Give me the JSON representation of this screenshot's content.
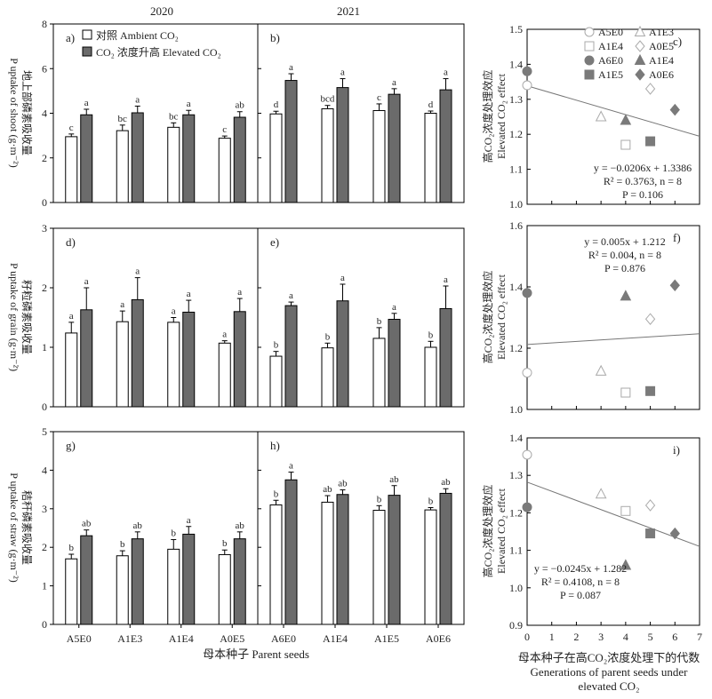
{
  "figure": {
    "year_labels": [
      "2020",
      "2021"
    ],
    "x_axis_title": "母本种子 Parent seeds",
    "legend": {
      "ambient": "对照 Ambient CO₂",
      "elevated": "CO₂ 浓度升高 Elevated CO₂"
    },
    "right_xlabel": [
      "母本种子在高CO₂浓度处理下的代数",
      "Generations of parent seeds under",
      "elevated CO₂"
    ],
    "right_ylabel": [
      "高CO₂浓度处理效应",
      "Elevated CO₂ effect"
    ],
    "row_ylabels": [
      [
        "地上部磷素吸收量",
        "P uptake of shoot (g·m⁻²)"
      ],
      [
        "籽粒磷素吸收量",
        "P uptake of grain (g·m⁻²)"
      ],
      [
        "秸秆磷素吸收量",
        "P uptake of straw (g·m⁻²)"
      ]
    ],
    "point_legend": [
      {
        "label": "A5E0",
        "marker": "circle",
        "fill": "open"
      },
      {
        "label": "A1E3",
        "marker": "triangle",
        "fill": "open"
      },
      {
        "label": "A1E4",
        "marker": "square",
        "fill": "open"
      },
      {
        "label": "A0E5",
        "marker": "diamond",
        "fill": "open"
      },
      {
        "label": "A6E0",
        "marker": "circle",
        "fill": "filled"
      },
      {
        "label": "A1E4",
        "marker": "triangle",
        "fill": "filled"
      },
      {
        "label": "A1E5",
        "marker": "square",
        "fill": "filled"
      },
      {
        "label": "A0E6",
        "marker": "diamond",
        "fill": "filled"
      }
    ],
    "colors": {
      "elevated_bar": "#6b6b6b",
      "ambient_bar": "#ffffff",
      "filled_marker": "#7a7a7a",
      "open_marker": "#aaaaaa"
    }
  },
  "chart_data": [
    {
      "panel": "a)",
      "type": "bar",
      "year": "2020",
      "categories": [
        "A5E0",
        "A1E3",
        "A1E4",
        "A0E5"
      ],
      "ylim": [
        0,
        8
      ],
      "yticks": [
        0,
        2,
        4,
        6,
        8
      ],
      "series": [
        {
          "name": "Ambient CO₂",
          "values": [
            2.95,
            3.22,
            3.37,
            2.88
          ],
          "errors": [
            0.12,
            0.25,
            0.2,
            0.1
          ],
          "letters": [
            "c",
            "bc",
            "bc",
            "c"
          ]
        },
        {
          "name": "Elevated CO₂",
          "values": [
            3.93,
            4.02,
            3.93,
            3.82
          ],
          "errors": [
            0.25,
            0.3,
            0.2,
            0.25
          ],
          "letters": [
            "a",
            "a",
            "a",
            "ab"
          ]
        }
      ]
    },
    {
      "panel": "b)",
      "type": "bar",
      "year": "2021",
      "categories": [
        "A6E0",
        "A1E4",
        "A1E5",
        "A0E6"
      ],
      "ylim": [
        0,
        8
      ],
      "yticks": [
        0,
        2,
        4,
        6,
        8
      ],
      "series": [
        {
          "name": "Ambient CO₂",
          "values": [
            3.97,
            4.2,
            4.12,
            4.0
          ],
          "errors": [
            0.12,
            0.15,
            0.3,
            0.1
          ],
          "letters": [
            "d",
            "bcd",
            "c",
            "d"
          ]
        },
        {
          "name": "Elevated CO₂",
          "values": [
            5.47,
            5.15,
            4.85,
            5.05
          ],
          "errors": [
            0.3,
            0.4,
            0.25,
            0.5
          ],
          "letters": [
            "a",
            "a",
            "a",
            "a"
          ]
        }
      ]
    },
    {
      "panel": "d)",
      "type": "bar",
      "year": "2020",
      "categories": [
        "A5E0",
        "A1E3",
        "A1E4",
        "A0E5"
      ],
      "ylim": [
        0,
        3
      ],
      "yticks": [
        0,
        1,
        2,
        3
      ],
      "series": [
        {
          "name": "Ambient CO₂",
          "values": [
            1.24,
            1.43,
            1.42,
            1.07
          ],
          "errors": [
            0.18,
            0.18,
            0.08,
            0.04
          ],
          "letters": [
            "a",
            "a",
            "a",
            "a"
          ]
        },
        {
          "name": "Elevated CO₂",
          "values": [
            1.63,
            1.8,
            1.59,
            1.6
          ],
          "errors": [
            0.37,
            0.37,
            0.2,
            0.22
          ],
          "letters": [
            "a",
            "a",
            "a",
            "a"
          ]
        }
      ]
    },
    {
      "panel": "e)",
      "type": "bar",
      "year": "2021",
      "categories": [
        "A6E0",
        "A1E4",
        "A1E5",
        "A0E6"
      ],
      "ylim": [
        0,
        3
      ],
      "yticks": [
        0,
        1,
        2,
        3
      ],
      "series": [
        {
          "name": "Ambient CO₂",
          "values": [
            0.85,
            0.99,
            1.15,
            1.0
          ],
          "errors": [
            0.08,
            0.08,
            0.18,
            0.1
          ],
          "letters": [
            "b",
            "b",
            "b",
            "b"
          ]
        },
        {
          "name": "Elevated CO₂",
          "values": [
            1.7,
            1.78,
            1.47,
            1.65
          ],
          "errors": [
            0.06,
            0.28,
            0.1,
            0.38
          ],
          "letters": [
            "a",
            "a",
            "a",
            "a"
          ]
        }
      ]
    },
    {
      "panel": "g)",
      "type": "bar",
      "year": "2020",
      "categories": [
        "A5E0",
        "A1E3",
        "A1E4",
        "A0E5"
      ],
      "ylim": [
        0,
        5
      ],
      "yticks": [
        0,
        1,
        2,
        3,
        4,
        5
      ],
      "series": [
        {
          "name": "Ambient CO₂",
          "values": [
            1.7,
            1.78,
            1.95,
            1.81
          ],
          "errors": [
            0.12,
            0.13,
            0.25,
            0.12
          ],
          "letters": [
            "b",
            "b",
            "b",
            "b"
          ]
        },
        {
          "name": "Elevated CO₂",
          "values": [
            2.3,
            2.22,
            2.34,
            2.22
          ],
          "errors": [
            0.15,
            0.18,
            0.2,
            0.18
          ],
          "letters": [
            "ab",
            "ab",
            "a",
            "ab"
          ]
        }
      ]
    },
    {
      "panel": "h)",
      "type": "bar",
      "year": "2021",
      "categories": [
        "A6E0",
        "A1E4",
        "A1E5",
        "A0E6"
      ],
      "ylim": [
        0,
        5
      ],
      "yticks": [
        0,
        1,
        2,
        3,
        4,
        5
      ],
      "series": [
        {
          "name": "Ambient CO₂",
          "values": [
            3.1,
            3.17,
            2.96,
            2.97
          ],
          "errors": [
            0.12,
            0.17,
            0.12,
            0.06
          ],
          "letters": [
            "b",
            "ab",
            "b",
            "b"
          ]
        },
        {
          "name": "Elevated CO₂",
          "values": [
            3.75,
            3.37,
            3.35,
            3.4
          ],
          "errors": [
            0.2,
            0.12,
            0.25,
            0.12
          ],
          "letters": [
            "a",
            "ab",
            "ab",
            "ab"
          ]
        }
      ]
    },
    {
      "panel": "c)",
      "type": "scatter",
      "xlim": [
        0,
        7
      ],
      "xticks": [
        0,
        1,
        2,
        3,
        4,
        5,
        6,
        7
      ],
      "ylim": [
        1.0,
        1.5
      ],
      "yticks": [
        1.0,
        1.1,
        1.2,
        1.3,
        1.4,
        1.5
      ],
      "points": [
        {
          "label": "A5E0",
          "x": 0,
          "y": 1.34
        },
        {
          "label": "A6E0",
          "x": 0,
          "y": 1.38
        },
        {
          "label": "A1E3",
          "x": 3,
          "y": 1.25
        },
        {
          "label": "A1E4",
          "x": 4,
          "y": 1.17
        },
        {
          "label": "A1E4",
          "x": 4,
          "y": 1.24
        },
        {
          "label": "A0E5",
          "x": 5,
          "y": 1.33
        },
        {
          "label": "A1E5",
          "x": 5,
          "y": 1.18
        },
        {
          "label": "A0E6",
          "x": 6,
          "y": 1.27
        }
      ],
      "fit": {
        "slope": -0.0206,
        "intercept": 1.3386
      },
      "stats": [
        "y = −0.0206x + 1.3386",
        "R² = 0.3763, n = 8",
        "P = 0.106"
      ]
    },
    {
      "panel": "f)",
      "type": "scatter",
      "xlim": [
        0,
        7
      ],
      "xticks": [
        0,
        1,
        2,
        3,
        4,
        5,
        6,
        7
      ],
      "ylim": [
        1.0,
        1.6
      ],
      "yticks": [
        1.0,
        1.2,
        1.4,
        1.6
      ],
      "points": [
        {
          "label": "A5E0",
          "x": 0,
          "y": 1.12
        },
        {
          "label": "A6E0",
          "x": 0,
          "y": 1.38
        },
        {
          "label": "A1E3",
          "x": 3,
          "y": 1.125
        },
        {
          "label": "A1E4",
          "x": 4,
          "y": 1.055
        },
        {
          "label": "A1E4",
          "x": 4,
          "y": 1.37
        },
        {
          "label": "A0E5",
          "x": 5,
          "y": 1.295
        },
        {
          "label": "A1E5",
          "x": 5,
          "y": 1.06
        },
        {
          "label": "A0E6",
          "x": 6,
          "y": 1.405
        }
      ],
      "fit": {
        "slope": 0.005,
        "intercept": 1.212
      },
      "stats": [
        "y = 0.005x + 1.212",
        "R² = 0.004, n = 8",
        "P = 0.876"
      ]
    },
    {
      "panel": "i)",
      "type": "scatter",
      "xlim": [
        0,
        7
      ],
      "xticks": [
        0,
        1,
        2,
        3,
        4,
        5,
        6,
        7
      ],
      "ylim": [
        0.9,
        1.4
      ],
      "yticks": [
        0.9,
        1.0,
        1.1,
        1.2,
        1.3,
        1.4
      ],
      "points": [
        {
          "label": "A5E0",
          "x": 0,
          "y": 1.355
        },
        {
          "label": "A6E0",
          "x": 0,
          "y": 1.215
        },
        {
          "label": "A1E3",
          "x": 3,
          "y": 1.25
        },
        {
          "label": "A1E4",
          "x": 4,
          "y": 1.205
        },
        {
          "label": "A1E4",
          "x": 4,
          "y": 1.06
        },
        {
          "label": "A0E5",
          "x": 5,
          "y": 1.22
        },
        {
          "label": "A1E5",
          "x": 5,
          "y": 1.145
        },
        {
          "label": "A0E6",
          "x": 6,
          "y": 1.145
        }
      ],
      "fit": {
        "slope": -0.0245,
        "intercept": 1.282
      },
      "stats": [
        "y = −0.0245x + 1.282",
        "R² = 0.4108, n = 8",
        "P = 0.087"
      ]
    }
  ]
}
